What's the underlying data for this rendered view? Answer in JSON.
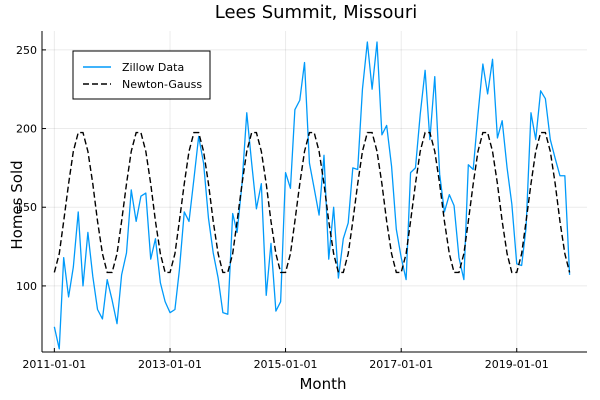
{
  "chart_data": {
    "type": "line",
    "title": "Lees Summit, Missouri",
    "xlabel": "Month",
    "ylabel": "Homes Sold",
    "xlim": [
      "2010-10-15",
      "2020-03-20"
    ],
    "ylim": [
      58,
      262
    ],
    "xticks": [
      "2011-01-01",
      "2013-01-01",
      "2015-01-01",
      "2017-01-01",
      "2019-01-01"
    ],
    "yticks": [
      100,
      150,
      200,
      250
    ],
    "grid": true,
    "legend_position": "top-left",
    "colors": {
      "zillow": "#009AFA",
      "newton": "#000000"
    },
    "series": [
      {
        "name": "Zillow Data",
        "style": "solid",
        "x": [
          "2011-01",
          "2011-02",
          "2011-03",
          "2011-04",
          "2011-05",
          "2011-06",
          "2011-07",
          "2011-08",
          "2011-09",
          "2011-10",
          "2011-11",
          "2011-12",
          "2012-01",
          "2012-02",
          "2012-03",
          "2012-04",
          "2012-05",
          "2012-06",
          "2012-07",
          "2012-08",
          "2012-09",
          "2012-10",
          "2012-11",
          "2012-12",
          "2013-01",
          "2013-02",
          "2013-03",
          "2013-04",
          "2013-05",
          "2013-06",
          "2013-07",
          "2013-08",
          "2013-09",
          "2013-10",
          "2013-11",
          "2013-12",
          "2014-01",
          "2014-02",
          "2014-03",
          "2014-04",
          "2014-05",
          "2014-06",
          "2014-07",
          "2014-08",
          "2014-09",
          "2014-10",
          "2014-11",
          "2014-12",
          "2015-01",
          "2015-02",
          "2015-03",
          "2015-04",
          "2015-05",
          "2015-06",
          "2015-07",
          "2015-08",
          "2015-09",
          "2015-10",
          "2015-11",
          "2015-12",
          "2016-01",
          "2016-02",
          "2016-03",
          "2016-04",
          "2016-05",
          "2016-06",
          "2016-07",
          "2016-08",
          "2016-09",
          "2016-10",
          "2016-11",
          "2016-12",
          "2017-01",
          "2017-02",
          "2017-03",
          "2017-04",
          "2017-05",
          "2017-06",
          "2017-07",
          "2017-08",
          "2017-09",
          "2017-10",
          "2017-11",
          "2017-12",
          "2018-01",
          "2018-02",
          "2018-03",
          "2018-04",
          "2018-05",
          "2018-06",
          "2018-07",
          "2018-08",
          "2018-09",
          "2018-10",
          "2018-11",
          "2018-12",
          "2019-01",
          "2019-02",
          "2019-03",
          "2019-04",
          "2019-05",
          "2019-06",
          "2019-07",
          "2019-08",
          "2019-09",
          "2019-10",
          "2019-11",
          "2019-12"
        ],
        "values": [
          74,
          60,
          118,
          93,
          112,
          147,
          100,
          134,
          106,
          85,
          79,
          104,
          91,
          76,
          107,
          121,
          161,
          141,
          157,
          159,
          117,
          130,
          102,
          90,
          83,
          85,
          110,
          147,
          141,
          168,
          195,
          178,
          143,
          121,
          105,
          83,
          82,
          146,
          134,
          165,
          210,
          178,
          149,
          165,
          94,
          127,
          84,
          90,
          172,
          162,
          212,
          218,
          242,
          178,
          162,
          145,
          183,
          117,
          150,
          105,
          130,
          140,
          175,
          174,
          225,
          255,
          225,
          255,
          196,
          202,
          176,
          136,
          118,
          104,
          172,
          175,
          209,
          237,
          193,
          233,
          171,
          147,
          158,
          151,
          118,
          104,
          177,
          174,
          209,
          241,
          222,
          244,
          194,
          205,
          175,
          152,
          114,
          113,
          137,
          210,
          193,
          224,
          219,
          193,
          181,
          170,
          170,
          107
        ]
      },
      {
        "name": "Newton-Gauss",
        "style": "dashed",
        "model": {
          "mean": 153,
          "amplitude": 46,
          "period_months": 12,
          "peak_month": 6.5
        }
      }
    ]
  }
}
